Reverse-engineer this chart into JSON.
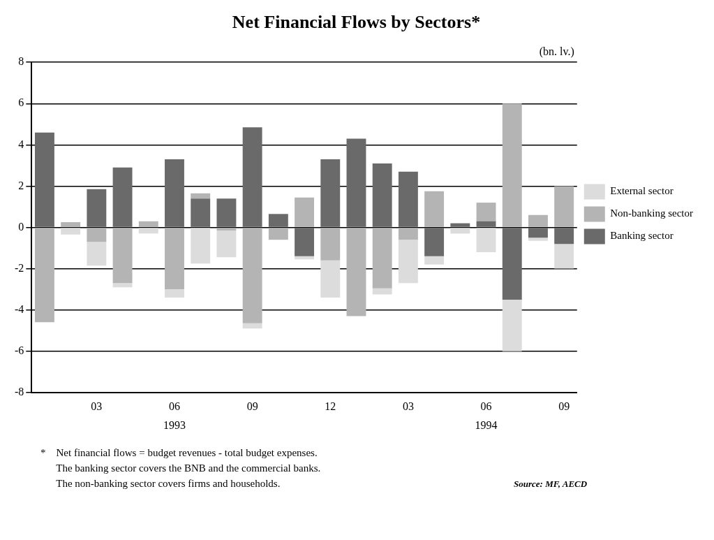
{
  "chart_data": {
    "type": "bar",
    "title": "Net Financial Flows by Sectors*",
    "ylabel": "(bn. lv.)",
    "categories": [
      null,
      null,
      "03",
      null,
      null,
      "06",
      null,
      null,
      "09",
      null,
      null,
      "12",
      null,
      null,
      "03",
      null,
      null,
      "06",
      null,
      null,
      "09"
    ],
    "stacked": true,
    "ylim": [
      -8,
      8
    ],
    "yticks": [
      -8,
      -6,
      -4,
      -2,
      0,
      2,
      4,
      6,
      8
    ],
    "grid": "y",
    "legend": "right",
    "series": [
      {
        "name": "Banking sector",
        "color": "#6a6a6a",
        "values": [
          4.6,
          null,
          1.85,
          2.9,
          null,
          3.3,
          1.4,
          1.4,
          4.85,
          0.65,
          -1.4,
          3.3,
          4.3,
          3.1,
          2.7,
          -1.4,
          0.2,
          0.3,
          -3.5,
          -0.5,
          -0.8
        ]
      },
      {
        "name": "Non-banking sector",
        "color": "#b4b4b4",
        "values": [
          -4.6,
          0.25,
          -0.7,
          -2.7,
          0.3,
          -3.0,
          0.25,
          -0.15,
          -4.65,
          -0.6,
          1.45,
          -1.6,
          -4.3,
          -2.95,
          -0.6,
          1.75,
          null,
          0.9,
          6.0,
          0.6,
          2.0
        ]
      },
      {
        "name": "External sector",
        "color": "#dcdcdc",
        "values": [
          null,
          -0.35,
          -1.15,
          -0.2,
          -0.3,
          -0.4,
          -1.75,
          -1.3,
          -0.25,
          null,
          -0.15,
          -1.8,
          null,
          -0.3,
          -2.1,
          -0.4,
          -0.3,
          -1.2,
          -2.5,
          -0.15,
          -1.2
        ]
      }
    ],
    "annotations": [
      "1993",
      "1994",
      "*    Net financial flows = budget revenues - total budget expenses.",
      "      The banking sector covers the BNB and the commercial banks.",
      "      The non-banking sector covers firms and households.",
      "Source: MF, AECD"
    ]
  }
}
